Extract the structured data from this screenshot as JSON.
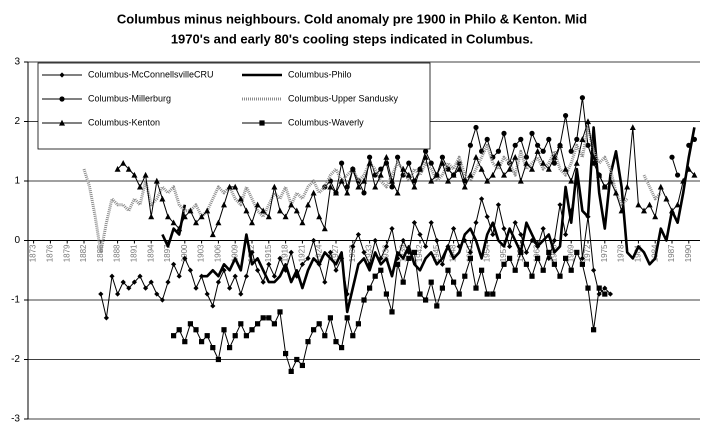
{
  "chart_data": {
    "type": "line",
    "title": [
      "Columbus minus neighbours.  Cold anomaly pre 1900 in Philo & Kenton. Mid",
      "1970's  and early 80's cooling steps indicated in Columbus."
    ],
    "x": [
      1882,
      1883,
      1884,
      1885,
      1886,
      1887,
      1888,
      1889,
      1890,
      1891,
      1892,
      1893,
      1894,
      1895,
      1896,
      1897,
      1898,
      1899,
      1900,
      1901,
      1902,
      1903,
      1904,
      1905,
      1906,
      1907,
      1908,
      1909,
      1910,
      1911,
      1912,
      1913,
      1914,
      1915,
      1916,
      1917,
      1918,
      1919,
      1920,
      1921,
      1922,
      1923,
      1924,
      1925,
      1926,
      1927,
      1928,
      1929,
      1930,
      1931,
      1932,
      1933,
      1934,
      1935,
      1936,
      1937,
      1938,
      1939,
      1940,
      1941,
      1942,
      1943,
      1944,
      1945,
      1946,
      1947,
      1948,
      1949,
      1950,
      1951,
      1952,
      1953,
      1954,
      1955,
      1956,
      1957,
      1958,
      1959,
      1960,
      1961,
      1962,
      1963,
      1964,
      1965,
      1966,
      1967,
      1968,
      1969,
      1970,
      1971,
      1972,
      1973,
      1974,
      1975,
      1976,
      1977,
      1978,
      1979,
      1980,
      1981,
      1982,
      1983,
      1984,
      1985,
      1986,
      1987,
      1988,
      1989,
      1990,
      1991
    ],
    "series": [
      {
        "name": "Columbus-McConnellsvilleCRU",
        "color": "#000000",
        "marker": "diamond",
        "line_width": 1,
        "values": [
          null,
          null,
          null,
          -0.9,
          -1.3,
          -0.6,
          -0.9,
          -0.7,
          -0.8,
          -0.7,
          -0.6,
          -0.8,
          -0.7,
          -0.9,
          -1.0,
          -0.7,
          -0.4,
          -0.6,
          -0.3,
          -0.5,
          -0.8,
          -0.6,
          -0.9,
          -1.1,
          -0.7,
          -0.5,
          -0.8,
          -0.6,
          -0.9,
          -0.6,
          -0.2,
          -0.5,
          -0.7,
          -0.4,
          -0.6,
          -0.3,
          -0.5,
          -0.2,
          -0.6,
          -0.4,
          -0.3,
          0.0,
          -0.4,
          -0.7,
          -0.2,
          -0.5,
          -0.3,
          -0.9,
          -0.1,
          0.1,
          -0.2,
          -0.4,
          0.0,
          -0.3,
          -0.1,
          0.2,
          -0.3,
          0.0,
          -0.2,
          0.3,
          0.1,
          -0.1,
          0.3,
          0.0,
          -0.4,
          -0.1,
          0.2,
          -0.1,
          0.0,
          -0.2,
          0.3,
          0.7,
          0.4,
          0.1,
          0.6,
          0.2,
          -0.1,
          0.3,
          0.1,
          -0.2,
          0.0,
          -0.1,
          0.2,
          -0.3,
          0.0,
          0.6,
          0.1,
          0.5,
          1.0,
          -0.3,
          0.4,
          -0.5,
          -0.9,
          -0.8,
          -0.9,
          null,
          null,
          null,
          null,
          null,
          null,
          null,
          null,
          null,
          null,
          null,
          null,
          null,
          null,
          null
        ]
      },
      {
        "name": "Columbus-Philo",
        "color": "#000000",
        "marker": "none",
        "line_width": 2.6,
        "values": [
          null,
          null,
          null,
          null,
          null,
          null,
          null,
          null,
          null,
          null,
          null,
          null,
          null,
          null,
          0.1,
          -0.1,
          0.2,
          0.1,
          0.6,
          null,
          null,
          -0.6,
          -0.6,
          -0.5,
          -0.6,
          -0.4,
          -0.5,
          -0.3,
          -0.5,
          0.1,
          -0.4,
          -0.3,
          -0.5,
          -0.7,
          -0.7,
          -0.6,
          -0.4,
          -0.7,
          -0.5,
          -0.8,
          -0.5,
          -0.3,
          -0.4,
          -0.2,
          -0.3,
          -0.4,
          -0.2,
          -1.2,
          -0.8,
          -0.4,
          -0.3,
          -0.5,
          -0.2,
          -0.4,
          -0.3,
          -0.6,
          -0.2,
          -0.3,
          -0.1,
          -0.4,
          -0.5,
          -0.3,
          -0.2,
          -0.4,
          -0.3,
          -0.1,
          -0.3,
          -0.2,
          0.1,
          0.2,
          0.0,
          -0.3,
          0.1,
          0.3,
          0.0,
          -0.1,
          0.2,
          0.0,
          -0.2,
          0.3,
          0.1,
          -0.1,
          0.0,
          0.1,
          -0.2,
          -0.1,
          0.9,
          0.3,
          1.2,
          0.5,
          0.4,
          1.9,
          0.8,
          0.2,
          1.1,
          1.5,
          0.9,
          -0.2,
          -0.3,
          -0.1,
          -0.2,
          -0.4,
          -0.3,
          0.2,
          0.0,
          0.5,
          0.3,
          0.8,
          1.4,
          1.9
        ]
      },
      {
        "name": "Columbus-Millerburg",
        "color": "#000000",
        "marker": "circle",
        "line_width": 1,
        "values": [
          null,
          null,
          null,
          null,
          null,
          null,
          null,
          null,
          null,
          null,
          null,
          null,
          null,
          null,
          null,
          null,
          null,
          null,
          null,
          null,
          null,
          null,
          null,
          null,
          null,
          null,
          null,
          null,
          null,
          null,
          null,
          null,
          null,
          null,
          null,
          null,
          null,
          null,
          null,
          null,
          null,
          null,
          null,
          0.9,
          1.0,
          0.8,
          1.3,
          0.9,
          1.2,
          1.0,
          0.8,
          1.4,
          1.1,
          1.2,
          1.3,
          0.9,
          1.4,
          1.1,
          1.3,
          1.0,
          1.2,
          1.5,
          1.3,
          1.1,
          1.4,
          1.2,
          1.1,
          1.3,
          1.0,
          1.6,
          1.9,
          1.5,
          1.7,
          1.4,
          1.5,
          1.8,
          1.3,
          1.6,
          1.7,
          1.4,
          1.8,
          1.6,
          1.5,
          1.7,
          1.3,
          1.6,
          2.1,
          1.5,
          1.7,
          2.4,
          1.6,
          1.3,
          1.1,
          0.9,
          null,
          null,
          null,
          null,
          null,
          null,
          null,
          null,
          null,
          null,
          null,
          1.4,
          1.1,
          null,
          1.6,
          1.7
        ]
      },
      {
        "name": "Columbus-Upper Sandusky",
        "color": "#8c8c8c",
        "marker": "none",
        "line_width": 3,
        "values": [
          1.2,
          0.9,
          0.4,
          -0.2,
          0.3,
          0.7,
          0.6,
          0.6,
          0.5,
          0.7,
          0.6,
          1.0,
          0.6,
          0.7,
          0.9,
          0.8,
          0.9,
          0.6,
          0.5,
          0.5,
          0.6,
          0.4,
          0.5,
          0.7,
          0.9,
          0.8,
          0.9,
          0.7,
          0.6,
          0.9,
          0.7,
          0.5,
          0.4,
          0.6,
          0.8,
          0.7,
          0.9,
          0.6,
          0.8,
          0.7,
          0.9,
          1.0,
          0.8,
          0.9,
          1.1,
          1.2,
          1.0,
          1.1,
          1.2,
          1.0,
          1.1,
          1.3,
          1.2,
          1.0,
          0.9,
          1.1,
          1.3,
          1.2,
          1.0,
          1.2,
          1.1,
          1.3,
          1.2,
          1.0,
          1.1,
          1.3,
          1.2,
          1.4,
          1.1,
          1.0,
          1.2,
          1.4,
          1.6,
          1.3,
          1.2,
          1.4,
          1.3,
          1.1,
          1.5,
          1.2,
          1.3,
          1.4,
          1.2,
          1.3,
          1.5,
          1.2,
          1.1,
          1.3,
          1.6,
          1.4,
          1.9,
          1.5,
          1.3,
          1.4,
          1.2,
          0.8,
          0.6,
          0.7,
          null,
          null,
          1.1,
          0.9,
          0.7,
          0.8,
          null,
          null,
          null,
          null,
          null,
          null
        ]
      },
      {
        "name": "Columbus-Kenton",
        "color": "#000000",
        "marker": "triangle",
        "line_width": 1,
        "values": [
          null,
          null,
          null,
          null,
          null,
          null,
          1.2,
          1.3,
          1.2,
          1.1,
          0.9,
          1.1,
          0.4,
          1.0,
          0.7,
          0.4,
          0.3,
          0.2,
          0.4,
          0.5,
          0.3,
          0.4,
          0.5,
          0.1,
          0.3,
          0.6,
          0.9,
          0.9,
          0.7,
          0.5,
          0.3,
          0.6,
          0.5,
          0.4,
          0.9,
          0.5,
          0.4,
          0.6,
          0.5,
          0.3,
          0.6,
          0.8,
          0.4,
          0.2,
          0.9,
          0.8,
          1.0,
          0.8,
          1.2,
          0.9,
          1.0,
          1.3,
          0.9,
          1.1,
          1.4,
          1.0,
          0.8,
          1.2,
          1.1,
          0.9,
          1.2,
          1.4,
          1.0,
          1.1,
          1.3,
          1.0,
          1.1,
          1.2,
          0.9,
          1.1,
          1.4,
          1.2,
          1.0,
          1.1,
          1.3,
          1.1,
          1.2,
          1.4,
          1.0,
          1.3,
          1.2,
          1.5,
          1.3,
          1.2,
          1.4,
          1.6,
          1.2,
          1.0,
          1.3,
          1.7,
          2.0,
          1.4,
          1.1,
          0.9,
          1.0,
          0.8,
          0.5,
          0.9,
          1.9,
          0.6,
          0.5,
          0.6,
          0.4,
          0.9,
          0.7,
          0.5,
          0.6,
          1.0,
          1.2,
          1.1
        ]
      },
      {
        "name": "Columbus-Waverly",
        "color": "#000000",
        "marker": "square",
        "line_width": 1,
        "values": [
          null,
          null,
          null,
          null,
          null,
          null,
          null,
          null,
          null,
          null,
          null,
          null,
          null,
          null,
          null,
          null,
          -1.6,
          -1.5,
          -1.7,
          -1.4,
          -1.5,
          -1.7,
          -1.6,
          -1.8,
          -2.0,
          -1.5,
          -1.8,
          -1.6,
          -1.4,
          -1.6,
          -1.5,
          -1.4,
          -1.3,
          -1.3,
          -1.4,
          -1.2,
          -1.9,
          -2.2,
          -2.0,
          -2.1,
          -1.7,
          -1.5,
          -1.4,
          -1.6,
          -1.3,
          -1.7,
          -1.8,
          -1.3,
          -1.6,
          -1.4,
          -1.0,
          -0.8,
          -0.6,
          -0.5,
          -0.9,
          -1.2,
          -0.4,
          -0.7,
          -0.3,
          -0.2,
          -0.9,
          -1.0,
          -0.7,
          -1.1,
          -0.8,
          -0.5,
          -0.7,
          -0.9,
          -0.6,
          -0.3,
          -0.8,
          -0.5,
          -0.9,
          -0.9,
          -0.6,
          -0.4,
          -0.3,
          -0.5,
          -0.2,
          -0.4,
          -0.6,
          -0.3,
          -0.5,
          -0.2,
          -0.4,
          -0.6,
          -0.3,
          -0.5,
          -0.2,
          -0.4,
          -0.8,
          -1.5,
          -0.8,
          -0.9,
          null,
          null,
          null,
          null,
          null,
          null,
          null,
          null,
          null,
          null,
          null,
          null,
          null,
          null,
          null,
          null
        ]
      }
    ],
    "xlim": [
      1872,
      1992
    ],
    "xticks": [
      1873,
      1876,
      1879,
      1882,
      1885,
      1888,
      1891,
      1894,
      1897,
      1900,
      1903,
      1906,
      1909,
      1912,
      1915,
      1918,
      1921,
      1924,
      1927,
      1930,
      1933,
      1936,
      1939,
      1942,
      1945,
      1948,
      1951,
      1954,
      1957,
      1960,
      1963,
      1966,
      1969,
      1972,
      1975,
      1978,
      1981,
      1984,
      1987,
      1990
    ],
    "ylim": [
      -3,
      3
    ],
    "yticks": [
      -3,
      -2,
      -1,
      0,
      1,
      2,
      3
    ],
    "grid": true,
    "legend": "upper left"
  }
}
